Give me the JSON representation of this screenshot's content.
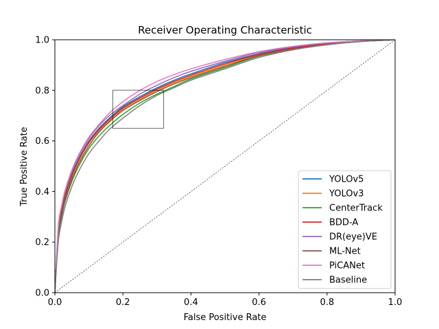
{
  "chart_data": {
    "type": "line",
    "title": "Receiver Operating Characteristic",
    "xlabel": "False Positive Rate",
    "ylabel": "True Positive Rate",
    "xlim": [
      0.0,
      1.0
    ],
    "ylim": [
      0.0,
      1.0
    ],
    "xticks": [
      "0.0",
      "0.2",
      "0.4",
      "0.6",
      "0.8",
      "1.0"
    ],
    "yticks": [
      "0.0",
      "0.2",
      "0.4",
      "0.6",
      "0.8",
      "1.0"
    ],
    "grid": false,
    "legend_position": "lower-right",
    "diagonal": {
      "x": [
        0,
        1
      ],
      "y": [
        0,
        1
      ],
      "style": "dotted"
    },
    "zoom_box": {
      "x_range": [
        0.17,
        0.32
      ],
      "y_range": [
        0.65,
        0.8
      ]
    },
    "x": [
      0,
      0.01,
      0.02,
      0.03,
      0.05,
      0.07,
      0.1,
      0.13,
      0.16,
      0.2,
      0.25,
      0.3,
      0.35,
      0.4,
      0.5,
      0.6,
      0.7,
      0.8,
      0.9,
      1.0
    ],
    "series": [
      {
        "name": "YOLOv5",
        "color": "#1f77b4",
        "values": [
          0,
          0.25,
          0.33,
          0.39,
          0.47,
          0.53,
          0.6,
          0.65,
          0.69,
          0.735,
          0.775,
          0.81,
          0.84,
          0.865,
          0.91,
          0.945,
          0.97,
          0.985,
          0.995,
          1.0
        ]
      },
      {
        "name": "YOLOv3",
        "color": "#ff7f0e",
        "values": [
          0,
          0.24,
          0.32,
          0.38,
          0.46,
          0.52,
          0.59,
          0.64,
          0.68,
          0.725,
          0.765,
          0.8,
          0.83,
          0.855,
          0.9,
          0.94,
          0.965,
          0.982,
          0.994,
          1.0
        ]
      },
      {
        "name": "CenterTrack",
        "color": "#2ca02c",
        "values": [
          0,
          0.22,
          0.3,
          0.36,
          0.44,
          0.5,
          0.57,
          0.62,
          0.66,
          0.705,
          0.75,
          0.785,
          0.815,
          0.845,
          0.89,
          0.935,
          0.962,
          0.98,
          0.993,
          1.0
        ]
      },
      {
        "name": "BDD-A",
        "color": "#d62728",
        "values": [
          0,
          0.24,
          0.325,
          0.385,
          0.465,
          0.525,
          0.595,
          0.645,
          0.685,
          0.73,
          0.77,
          0.805,
          0.835,
          0.86,
          0.905,
          0.942,
          0.967,
          0.983,
          0.994,
          1.0
        ]
      },
      {
        "name": "DR(eye)VE",
        "color": "#9467bd",
        "values": [
          0,
          0.26,
          0.34,
          0.4,
          0.48,
          0.54,
          0.61,
          0.66,
          0.7,
          0.74,
          0.785,
          0.82,
          0.85,
          0.875,
          0.915,
          0.95,
          0.972,
          0.987,
          0.996,
          1.0
        ]
      },
      {
        "name": "ML-Net",
        "color": "#8c564b",
        "values": [
          0,
          0.23,
          0.31,
          0.37,
          0.45,
          0.51,
          0.58,
          0.635,
          0.675,
          0.72,
          0.76,
          0.795,
          0.825,
          0.85,
          0.895,
          0.937,
          0.963,
          0.981,
          0.993,
          1.0
        ]
      },
      {
        "name": "PiCANet",
        "color": "#e377c2",
        "values": [
          0,
          0.26,
          0.345,
          0.405,
          0.485,
          0.545,
          0.615,
          0.665,
          0.71,
          0.755,
          0.8,
          0.835,
          0.862,
          0.885,
          0.922,
          0.953,
          0.974,
          0.988,
          0.996,
          1.0
        ]
      },
      {
        "name": "Baseline",
        "color": "#7f7f7f",
        "values": [
          0,
          0.2,
          0.28,
          0.34,
          0.42,
          0.48,
          0.55,
          0.6,
          0.645,
          0.69,
          0.74,
          0.78,
          0.81,
          0.84,
          0.885,
          0.93,
          0.96,
          0.98,
          0.993,
          1.0
        ]
      }
    ]
  }
}
